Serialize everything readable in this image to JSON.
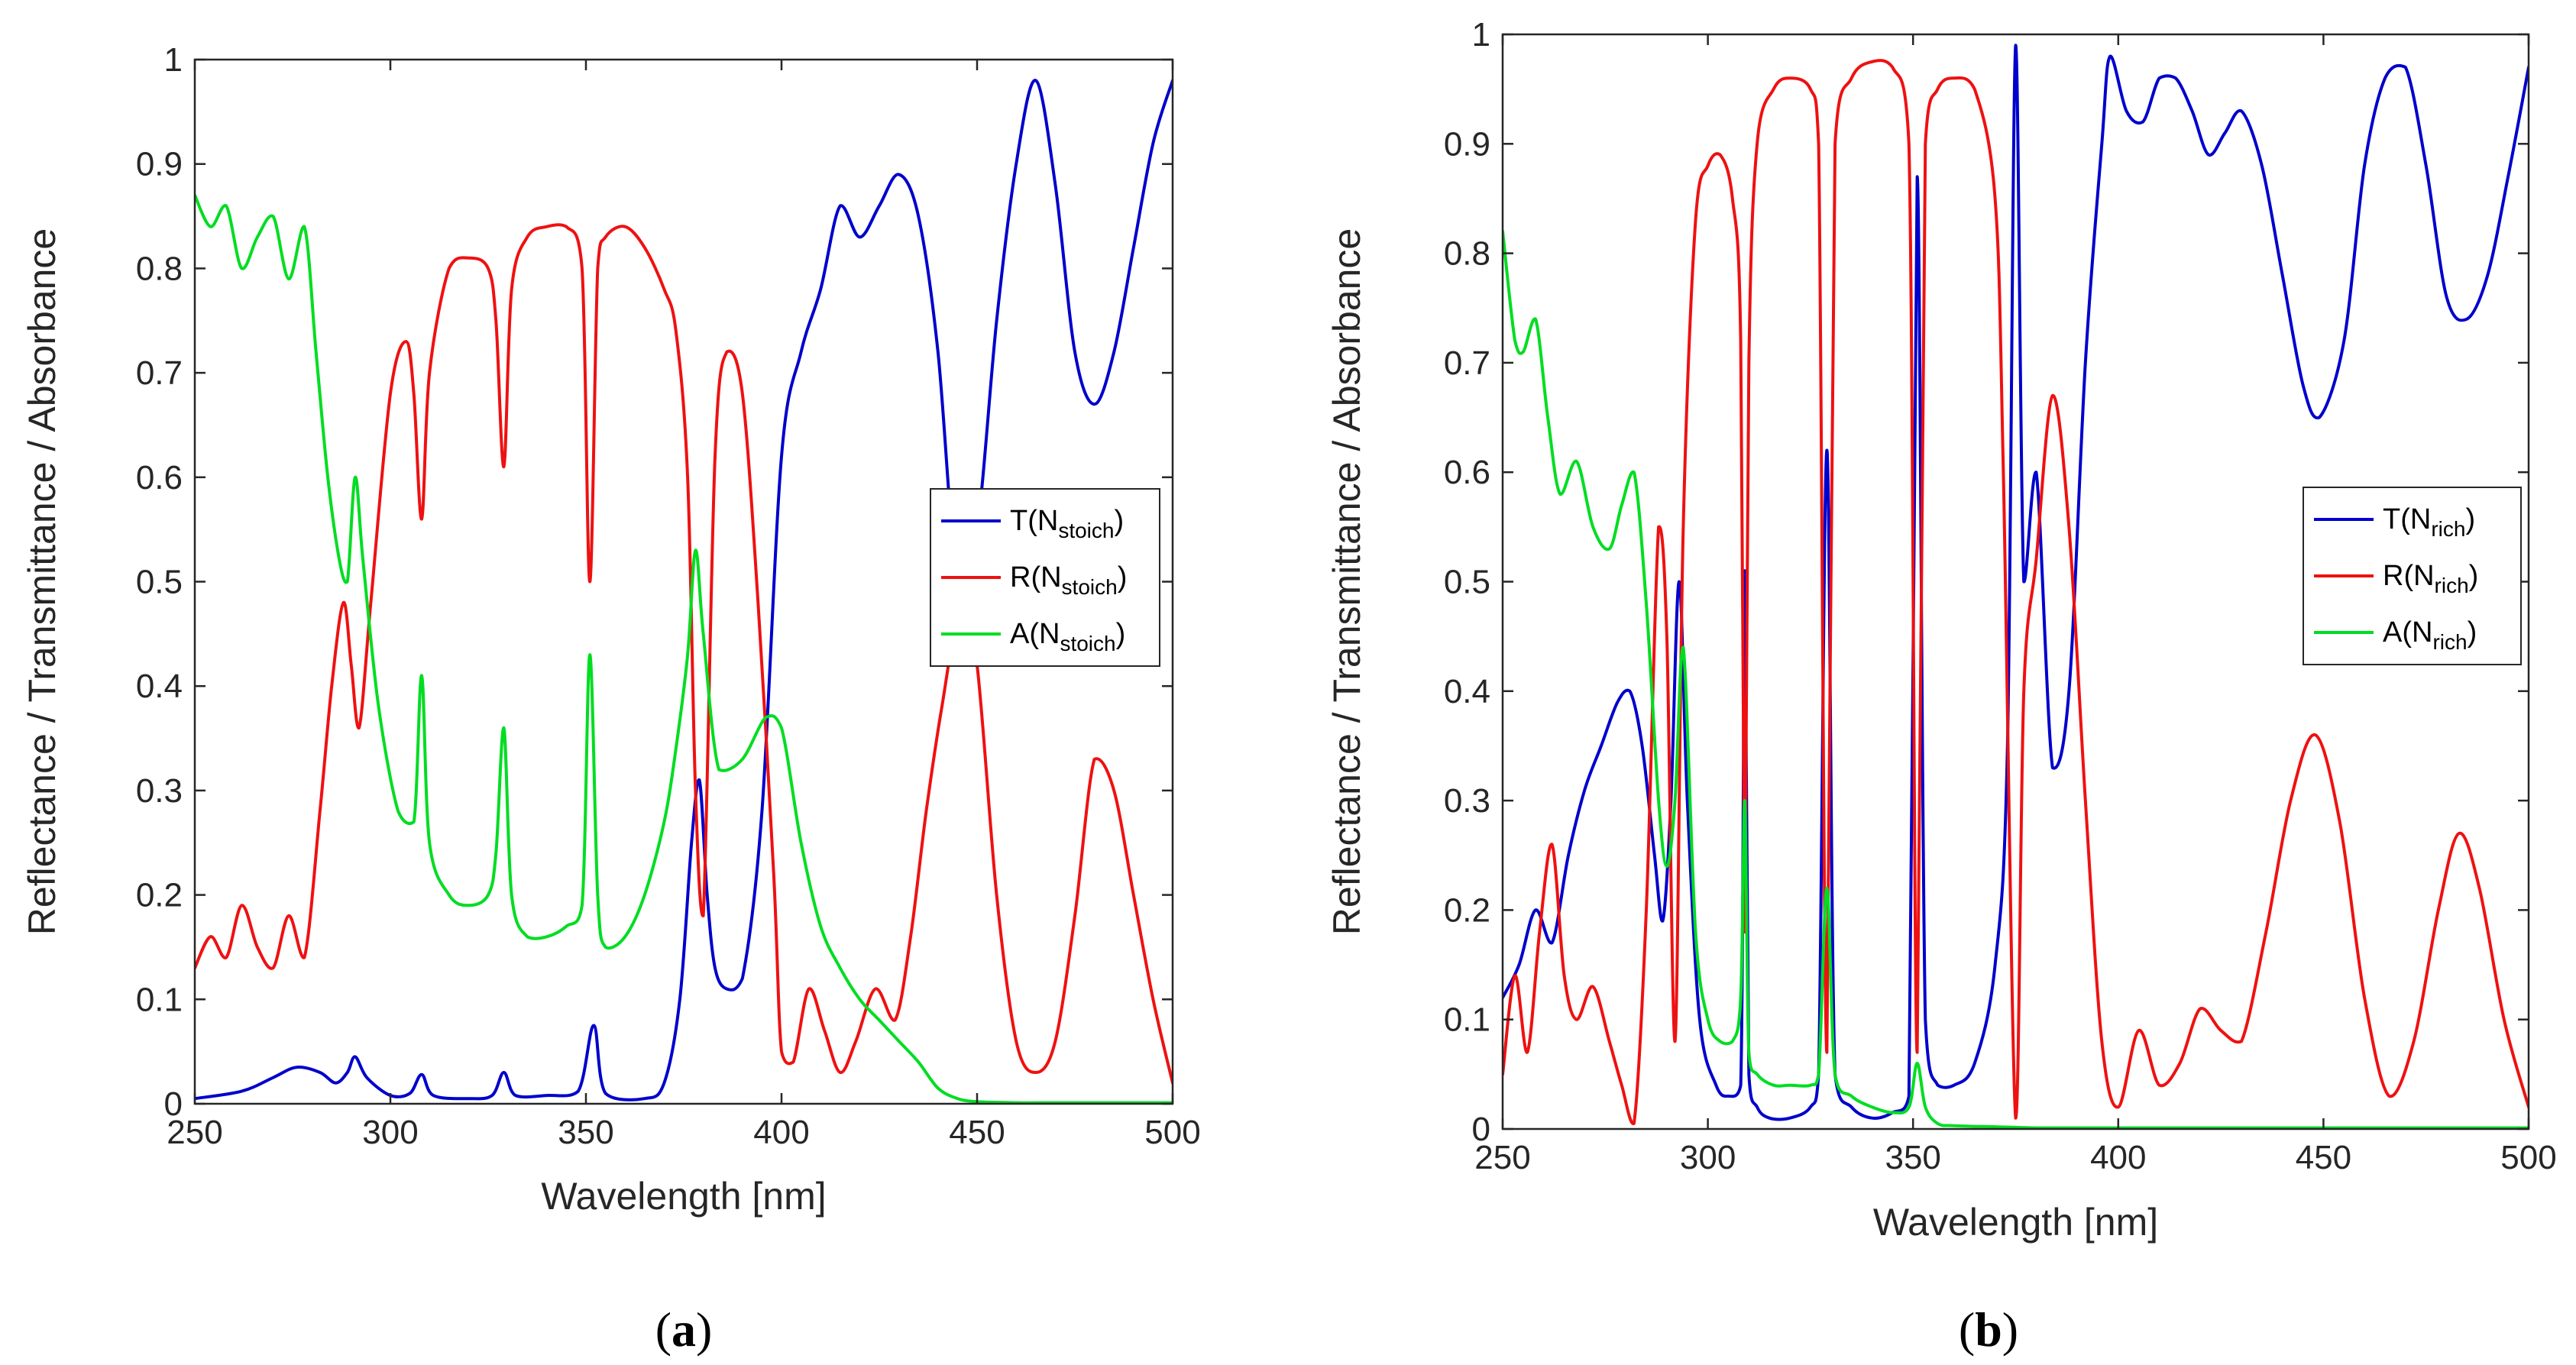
{
  "colors": {
    "T": "#0000cc",
    "R": "#ee1111",
    "A": "#00dd22",
    "axis": "#262626"
  },
  "chart_data": [
    {
      "type": "line",
      "panel": "a",
      "caption_pre": "(",
      "caption_letter": "a",
      "caption_post": ")",
      "xlabel": "Wavelength [nm]",
      "ylabel": "Reflectance / Transmittance / Absorbance",
      "xlim": [
        250,
        500
      ],
      "ylim": [
        0,
        1
      ],
      "xticks": [
        "250",
        "300",
        "350",
        "400",
        "450",
        "500"
      ],
      "yticks": [
        "0",
        "0.1",
        "0.2",
        "0.3",
        "0.4",
        "0.5",
        "0.6",
        "0.7",
        "0.8",
        "0.9",
        "1"
      ],
      "legend_position": "center-right",
      "series": [
        {
          "key": "T",
          "name_main": "T(N",
          "name_sub": "stoich",
          "name_end": ")",
          "x": [
            250,
            262,
            270,
            276,
            282,
            286,
            289,
            291,
            294,
            300,
            305,
            308,
            311,
            320,
            326,
            329,
            332,
            340,
            348,
            352,
            355,
            365,
            370,
            374,
            377,
            379,
            381,
            383,
            386,
            390,
            395,
            400,
            405,
            410,
            415,
            420,
            425,
            430,
            435,
            440,
            445,
            450,
            455,
            460,
            465,
            470,
            475,
            480,
            485,
            490,
            495,
            500
          ],
          "y": [
            0.005,
            0.012,
            0.025,
            0.035,
            0.03,
            0.02,
            0.03,
            0.045,
            0.025,
            0.008,
            0.01,
            0.028,
            0.008,
            0.005,
            0.008,
            0.03,
            0.008,
            0.008,
            0.012,
            0.075,
            0.01,
            0.005,
            0.02,
            0.1,
            0.25,
            0.31,
            0.2,
            0.13,
            0.11,
            0.12,
            0.28,
            0.62,
            0.72,
            0.78,
            0.86,
            0.83,
            0.86,
            0.89,
            0.85,
            0.72,
            0.5,
            0.55,
            0.75,
            0.9,
            0.98,
            0.88,
            0.72,
            0.67,
            0.72,
            0.82,
            0.92,
            0.98
          ]
        },
        {
          "key": "R",
          "name_main": "R(N",
          "name_sub": "stoich",
          "name_end": ")",
          "x": [
            250,
            254,
            258,
            262,
            266,
            270,
            274,
            278,
            282,
            285,
            288,
            290,
            292,
            295,
            300,
            304,
            306,
            308,
            310,
            315,
            320,
            325,
            327,
            329,
            331,
            335,
            340,
            345,
            349,
            351,
            353,
            355,
            360,
            365,
            370,
            373,
            376,
            378,
            380,
            383,
            386,
            390,
            394,
            398,
            400,
            403,
            407,
            411,
            415,
            419,
            424,
            429,
            433,
            437,
            441,
            446,
            450,
            455,
            460,
            465,
            470,
            475,
            480,
            485,
            490,
            495,
            500
          ],
          "y": [
            0.13,
            0.16,
            0.14,
            0.19,
            0.15,
            0.13,
            0.18,
            0.14,
            0.28,
            0.4,
            0.48,
            0.42,
            0.36,
            0.48,
            0.68,
            0.73,
            0.68,
            0.56,
            0.7,
            0.8,
            0.81,
            0.8,
            0.75,
            0.61,
            0.78,
            0.83,
            0.84,
            0.84,
            0.8,
            0.5,
            0.8,
            0.83,
            0.84,
            0.82,
            0.78,
            0.74,
            0.6,
            0.3,
            0.18,
            0.62,
            0.72,
            0.68,
            0.48,
            0.22,
            0.05,
            0.04,
            0.11,
            0.07,
            0.03,
            0.06,
            0.11,
            0.08,
            0.16,
            0.28,
            0.38,
            0.48,
            0.42,
            0.2,
            0.06,
            0.03,
            0.06,
            0.18,
            0.33,
            0.3,
            0.2,
            0.1,
            0.02
          ]
        },
        {
          "key": "A",
          "name_main": "A(N",
          "name_sub": "stoich",
          "name_end": ")",
          "x": [
            250,
            254,
            258,
            262,
            266,
            270,
            274,
            278,
            281,
            284,
            287,
            289,
            291,
            293,
            297,
            302,
            306,
            308,
            310,
            315,
            320,
            325,
            327,
            329,
            331,
            335,
            340,
            345,
            349,
            351,
            353,
            355,
            360,
            365,
            370,
            373,
            376,
            378,
            380,
            384,
            390,
            396,
            400,
            405,
            410,
            415,
            420,
            425,
            430,
            435,
            440,
            445,
            450,
            460,
            470,
            480,
            490,
            500
          ],
          "y": [
            0.87,
            0.84,
            0.86,
            0.8,
            0.83,
            0.85,
            0.79,
            0.84,
            0.72,
            0.6,
            0.52,
            0.5,
            0.6,
            0.52,
            0.38,
            0.28,
            0.27,
            0.41,
            0.25,
            0.2,
            0.19,
            0.2,
            0.24,
            0.36,
            0.2,
            0.16,
            0.16,
            0.17,
            0.19,
            0.43,
            0.2,
            0.15,
            0.16,
            0.2,
            0.27,
            0.34,
            0.43,
            0.53,
            0.45,
            0.32,
            0.33,
            0.37,
            0.36,
            0.25,
            0.17,
            0.13,
            0.1,
            0.08,
            0.06,
            0.04,
            0.015,
            0.005,
            0.002,
            0.001,
            0.001,
            0.001,
            0.001,
            0.001
          ]
        }
      ]
    },
    {
      "type": "line",
      "panel": "b",
      "caption_pre": "(",
      "caption_letter": "b",
      "caption_post": ")",
      "xlabel": "Wavelength [nm]",
      "ylabel": "Reflectance / Transmittance / Absorbance",
      "xlim": [
        250,
        500
      ],
      "ylim": [
        0,
        1
      ],
      "xticks": [
        "250",
        "300",
        "350",
        "400",
        "450",
        "500"
      ],
      "yticks": [
        "0",
        "0.1",
        "0.2",
        "0.3",
        "0.4",
        "0.5",
        "0.6",
        "0.7",
        "0.8",
        "0.9",
        "1"
      ],
      "legend_position": "center-right",
      "series": [
        {
          "key": "T",
          "name_main": "T(N",
          "name_sub": "rich",
          "name_end": ")",
          "x": [
            250,
            254,
            258,
            262,
            266,
            270,
            274,
            278,
            281,
            284,
            287,
            289,
            291,
            293,
            295,
            298,
            302,
            305,
            308,
            309,
            310,
            312,
            315,
            320,
            325,
            327,
            329,
            331,
            335,
            340,
            345,
            349,
            351,
            353,
            356,
            360,
            365,
            370,
            373,
            375,
            377,
            380,
            384,
            388,
            392,
            396,
            398,
            402,
            406,
            410,
            414,
            418,
            422,
            426,
            430,
            435,
            440,
            445,
            449,
            455,
            460,
            465,
            470,
            475,
            480,
            485,
            490,
            495,
            500
          ],
          "y": [
            0.12,
            0.15,
            0.2,
            0.17,
            0.25,
            0.31,
            0.35,
            0.39,
            0.4,
            0.35,
            0.25,
            0.19,
            0.3,
            0.5,
            0.3,
            0.1,
            0.04,
            0.03,
            0.04,
            0.51,
            0.05,
            0.02,
            0.01,
            0.01,
            0.02,
            0.05,
            0.62,
            0.05,
            0.02,
            0.01,
            0.015,
            0.03,
            0.87,
            0.1,
            0.04,
            0.04,
            0.06,
            0.15,
            0.35,
            0.99,
            0.5,
            0.6,
            0.33,
            0.4,
            0.7,
            0.9,
            0.98,
            0.93,
            0.92,
            0.96,
            0.96,
            0.93,
            0.89,
            0.91,
            0.93,
            0.88,
            0.78,
            0.68,
            0.65,
            0.72,
            0.88,
            0.96,
            0.97,
            0.88,
            0.76,
            0.74,
            0.78,
            0.87,
            0.97
          ]
        },
        {
          "key": "R",
          "name_main": "R(N",
          "name_sub": "rich",
          "name_end": ")",
          "x": [
            250,
            253,
            256,
            259,
            262,
            265,
            268,
            272,
            276,
            279,
            282,
            285,
            288,
            290,
            292,
            294,
            297,
            300,
            303,
            306,
            308,
            309,
            310,
            312,
            316,
            320,
            325,
            327,
            329,
            331,
            335,
            340,
            345,
            349,
            351,
            353,
            356,
            360,
            365,
            370,
            372,
            375,
            377,
            380,
            384,
            388,
            392,
            396,
            400,
            405,
            410,
            415,
            420,
            425,
            430,
            436,
            442,
            448,
            454,
            460,
            466,
            472,
            478,
            483,
            488,
            494,
            500
          ],
          "y": [
            0.05,
            0.14,
            0.07,
            0.18,
            0.26,
            0.14,
            0.1,
            0.13,
            0.08,
            0.04,
            0.005,
            0.2,
            0.55,
            0.45,
            0.08,
            0.55,
            0.83,
            0.88,
            0.89,
            0.85,
            0.72,
            0.18,
            0.7,
            0.9,
            0.95,
            0.96,
            0.95,
            0.9,
            0.07,
            0.9,
            0.96,
            0.975,
            0.97,
            0.9,
            0.07,
            0.9,
            0.95,
            0.96,
            0.95,
            0.85,
            0.6,
            0.01,
            0.4,
            0.52,
            0.67,
            0.55,
            0.3,
            0.08,
            0.02,
            0.09,
            0.04,
            0.06,
            0.11,
            0.09,
            0.08,
            0.18,
            0.3,
            0.36,
            0.28,
            0.12,
            0.03,
            0.08,
            0.2,
            0.27,
            0.22,
            0.1,
            0.02
          ]
        },
        {
          "key": "A",
          "name_main": "A(N",
          "name_sub": "rich",
          "name_end": ")",
          "x": [
            250,
            253,
            255,
            258,
            261,
            264,
            268,
            272,
            276,
            279,
            282,
            285,
            288,
            290,
            292,
            294,
            297,
            300,
            303,
            306,
            308,
            309,
            310,
            312,
            316,
            320,
            325,
            327,
            329,
            331,
            335,
            340,
            345,
            349,
            351,
            353,
            356,
            360,
            370,
            380,
            390,
            400,
            420,
            450,
            480,
            500
          ],
          "y": [
            0.82,
            0.72,
            0.71,
            0.74,
            0.65,
            0.58,
            0.61,
            0.55,
            0.53,
            0.57,
            0.6,
            0.48,
            0.3,
            0.24,
            0.3,
            0.44,
            0.18,
            0.1,
            0.08,
            0.08,
            0.12,
            0.3,
            0.07,
            0.05,
            0.04,
            0.04,
            0.04,
            0.05,
            0.22,
            0.05,
            0.03,
            0.02,
            0.015,
            0.02,
            0.06,
            0.02,
            0.005,
            0.003,
            0.002,
            0.001,
            0.001,
            0.001,
            0.001,
            0.001,
            0.001,
            0.001
          ]
        }
      ]
    }
  ]
}
